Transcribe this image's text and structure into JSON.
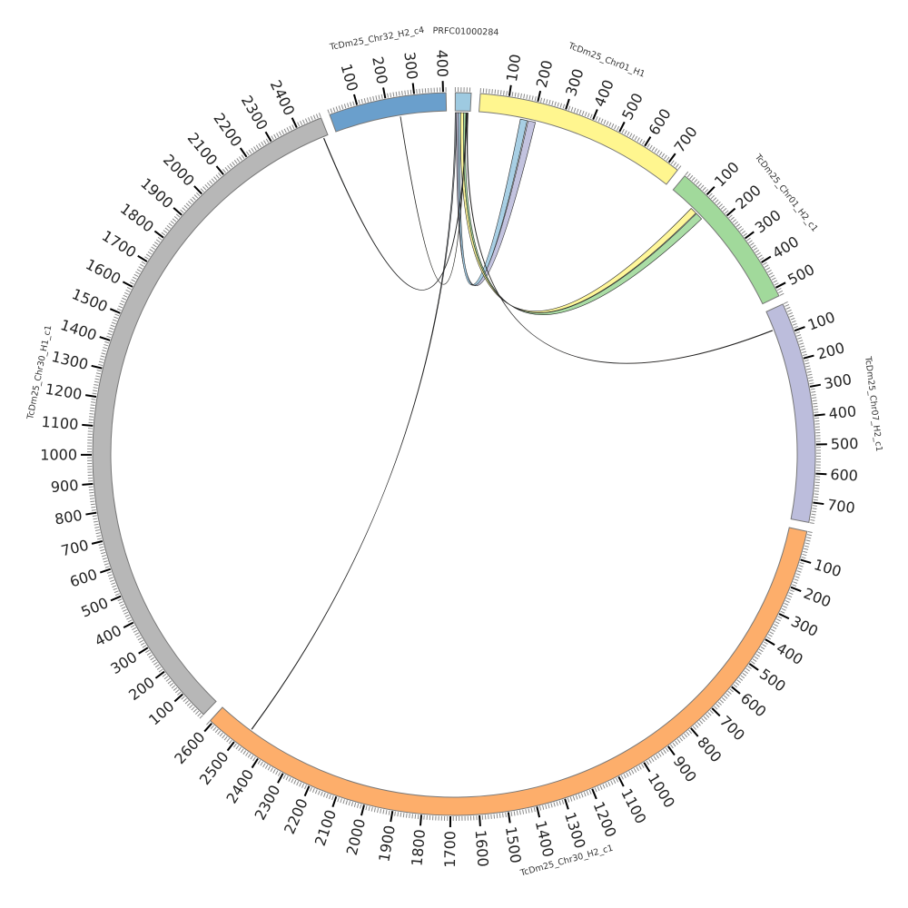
{
  "chart_data": {
    "type": "chord",
    "title": "",
    "major_tick_interval": 100,
    "minor_tick_interval": 10,
    "chromosomes": [
      {
        "name": "PRFC01000284",
        "length": 55,
        "color": "#9ecae1"
      },
      {
        "name": "TcDm25_Chr01_H1",
        "length": 740,
        "color": "#fff68f"
      },
      {
        "name": "TcDm25_Chr01_H2_c1",
        "length": 530,
        "color": "#a1d99b"
      },
      {
        "name": "TcDm25_Chr07_H2_c1",
        "length": 770,
        "color": "#bcbddc"
      },
      {
        "name": "TcDm25_Chr30_H2_c1",
        "length": 2610,
        "color": "#fdae6b"
      },
      {
        "name": "TcDm25_Chr30_H1_c1",
        "length": 2490,
        "color": "#b7b7b7"
      },
      {
        "name": "TcDm25_Chr32_H2_c4",
        "length": 410,
        "color": "#6a9fcc"
      }
    ],
    "links": [
      {
        "source": {
          "chr": "PRFC01000284",
          "start": 0,
          "end": 5
        },
        "target": {
          "chr": "TcDm25_Chr30_H2_c1",
          "start": 2476,
          "end": 2478
        },
        "color": "#8f98a3"
      },
      {
        "source": {
          "chr": "PRFC01000284",
          "start": 5,
          "end": 12
        },
        "target": {
          "chr": "TcDm25_Chr01_H1",
          "start": 182,
          "end": 209
        },
        "color": "#bcbddc"
      },
      {
        "source": {
          "chr": "PRFC01000284",
          "start": 12,
          "end": 20
        },
        "target": {
          "chr": "TcDm25_Chr01_H1",
          "start": 153,
          "end": 178
        },
        "color": "#9ecae1"
      },
      {
        "source": {
          "chr": "PRFC01000284",
          "start": 20,
          "end": 31
        },
        "target": {
          "chr": "TcDm25_Chr01_H2_c1",
          "start": 94,
          "end": 118
        },
        "color": "#fff68f"
      },
      {
        "source": {
          "chr": "PRFC01000284",
          "start": 31,
          "end": 39
        },
        "target": {
          "chr": "TcDm25_Chr01_H2_c1",
          "start": 121,
          "end": 148
        },
        "color": "#a1d99b"
      },
      {
        "source": {
          "chr": "PRFC01000284",
          "start": 40,
          "end": 41
        },
        "target": {
          "chr": "TcDm25_Chr32_H2_c4",
          "start": 241,
          "end": 242
        },
        "color": "#c9c94a"
      },
      {
        "source": {
          "chr": "PRFC01000284",
          "start": 42,
          "end": 44
        },
        "target": {
          "chr": "TcDm25_Chr30_H1_c1",
          "start": 2471,
          "end": 2473
        },
        "color": "#4a7fb5"
      },
      {
        "source": {
          "chr": "PRFC01000284",
          "start": 45,
          "end": 47
        },
        "target": {
          "chr": "TcDm25_Chr07_H2_c1",
          "start": 71,
          "end": 73
        },
        "color": "#fd8d3c"
      }
    ]
  }
}
